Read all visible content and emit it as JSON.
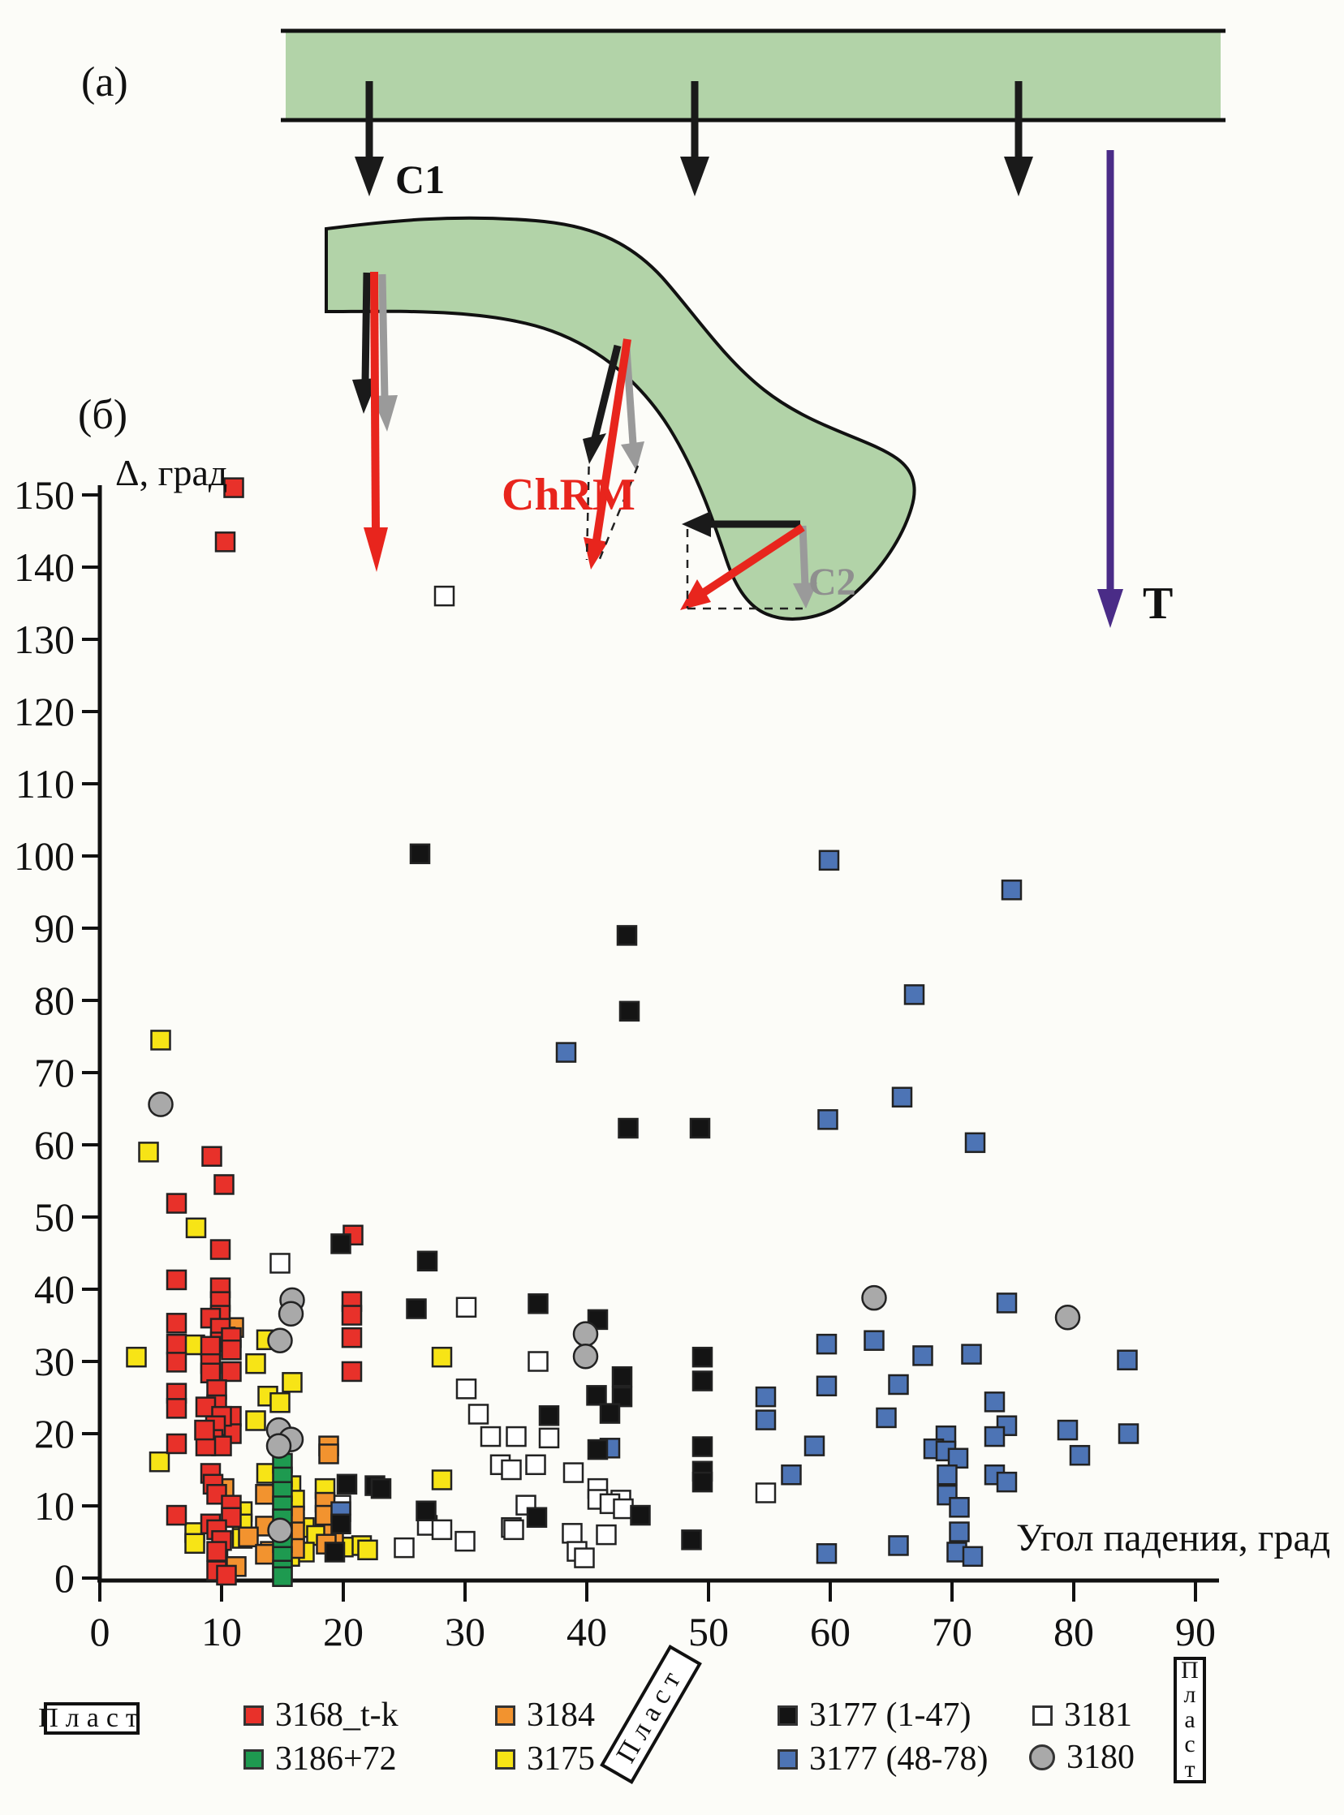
{
  "panel_a": {
    "label": "(а)",
    "c1_label": "C1",
    "t_label": "T"
  },
  "panel_b": {
    "label": "(б)",
    "chrm_label": "ChRM",
    "c2_label": "C2"
  },
  "axis": {
    "y_label": "Δ, град",
    "x_label": "Угол падения, град"
  },
  "colors": {
    "band_green": "#b2d3a8",
    "outline": "#111111",
    "black_arrow": "#1a1a1a",
    "gray_arrow": "#9a9a9a",
    "red_arrow": "#e8251d",
    "purple_arrow": "#4a2c87"
  },
  "legend": {
    "plast_label": "Пласт",
    "items": [
      {
        "label": "3168_t-k",
        "color": "#e8312a",
        "shape": "square"
      },
      {
        "label": "3186+72",
        "color": "#1e9a50",
        "shape": "square"
      },
      {
        "label": "3184",
        "color": "#f2932f",
        "shape": "square"
      },
      {
        "label": "3175",
        "color": "#f7e416",
        "shape": "square"
      },
      {
        "label": "3177 (1-47)",
        "color": "#141414",
        "shape": "square"
      },
      {
        "label": "3177 (48-78)",
        "color": "#4d74b5",
        "shape": "square"
      },
      {
        "label": "3181",
        "color": "#ffffff",
        "shape": "square"
      },
      {
        "label": "3180",
        "color": "#a9a9a9",
        "shape": "circle"
      }
    ]
  },
  "chart_data": {
    "type": "scatter",
    "title": "",
    "xlabel": "Угол падения, град",
    "ylabel": "Δ, град",
    "xlim": [
      0,
      90
    ],
    "ylim": [
      0,
      150
    ],
    "x_ticks": [
      0,
      10,
      20,
      30,
      40,
      50,
      60,
      70,
      80,
      90
    ],
    "y_ticks": [
      0,
      10,
      20,
      30,
      40,
      50,
      60,
      70,
      80,
      90,
      100,
      110,
      120,
      130,
      140,
      150
    ],
    "grid": false,
    "legend_position": "bottom",
    "series": [
      {
        "name": "3181",
        "label": "3181",
        "color": "#ffffff",
        "marker": "square",
        "points": [
          [
            28.3,
            136
          ],
          [
            14.8,
            43.6
          ],
          [
            30.1,
            37.5
          ],
          [
            36,
            30
          ],
          [
            30.1,
            26.2
          ],
          [
            31.1,
            22.7
          ],
          [
            32.1,
            19.6
          ],
          [
            34.2,
            19.6
          ],
          [
            36.9,
            19.4
          ],
          [
            32.9,
            15.7
          ],
          [
            35.8,
            15.7
          ],
          [
            33.8,
            15
          ],
          [
            38.9,
            14.6
          ],
          [
            40.9,
            12.4
          ],
          [
            54.7,
            11.8
          ],
          [
            40.9,
            10.9
          ],
          [
            42.8,
            10.8
          ],
          [
            41.9,
            10.3
          ],
          [
            35,
            10.1
          ],
          [
            19.8,
            10.1
          ],
          [
            43,
            9.6
          ],
          [
            26.9,
            7.3
          ],
          [
            33.8,
            7
          ],
          [
            34,
            6.7
          ],
          [
            28.1,
            6.7
          ],
          [
            38.8,
            6.2
          ],
          [
            41.6,
            6
          ],
          [
            30,
            5.1
          ],
          [
            25,
            4.2
          ],
          [
            39.2,
            3.7
          ],
          [
            39.8,
            2.8
          ]
        ]
      },
      {
        "name": "3175",
        "label": "3175",
        "color": "#f7e416",
        "marker": "square",
        "points": [
          [
            5,
            74.5
          ],
          [
            4,
            59
          ],
          [
            7.9,
            48.5
          ],
          [
            13.7,
            33
          ],
          [
            7.8,
            32.3
          ],
          [
            3,
            30.6
          ],
          [
            28.1,
            30.6
          ],
          [
            12.8,
            29.7
          ],
          [
            15.8,
            27.1
          ],
          [
            13.8,
            25.2
          ],
          [
            14.8,
            24.3
          ],
          [
            12.8,
            21.8
          ],
          [
            4.9,
            16.1
          ],
          [
            13.7,
            14.5
          ],
          [
            28.1,
            13.6
          ],
          [
            15.7,
            12.8
          ],
          [
            18.5,
            12.4
          ],
          [
            16,
            10.8
          ],
          [
            11.7,
            9.2
          ],
          [
            11.7,
            7.5
          ],
          [
            16.8,
            7
          ],
          [
            7.8,
            6.3
          ],
          [
            17.8,
            5.9
          ],
          [
            11.7,
            5.5
          ],
          [
            7.8,
            4.8
          ],
          [
            21.5,
            4.5
          ],
          [
            20,
            4.3
          ],
          [
            22,
            3.9
          ],
          [
            16.8,
            3.6
          ],
          [
            15.6,
            3
          ],
          [
            9.7,
            2.7
          ]
        ]
      },
      {
        "name": "3184",
        "label": "3184",
        "color": "#f2932f",
        "marker": "square",
        "points": [
          [
            11,
            34.7
          ],
          [
            10.3,
            33.4
          ],
          [
            18.8,
            18.3
          ],
          [
            18.8,
            17.2
          ],
          [
            10.2,
            12.4
          ],
          [
            13.6,
            11.6
          ],
          [
            18.5,
            10.5
          ],
          [
            18.5,
            8.7
          ],
          [
            16,
            8.6
          ],
          [
            13.6,
            7.2
          ],
          [
            16,
            6.4
          ],
          [
            19.2,
            6.1
          ],
          [
            12.2,
            5.7
          ],
          [
            18.6,
            4.7
          ],
          [
            16,
            4.1
          ],
          [
            14,
            3.7
          ],
          [
            13.6,
            3.3
          ],
          [
            11.2,
            1.6
          ]
        ]
      },
      {
        "name": "3168_t-k",
        "label": "3168_t-k",
        "color": "#e8312a",
        "marker": "square",
        "points": [
          [
            11,
            151
          ],
          [
            10.3,
            143.5
          ],
          [
            9.2,
            58.4
          ],
          [
            10.2,
            54.5
          ],
          [
            6.3,
            51.9
          ],
          [
            9.9,
            45.5
          ],
          [
            6.3,
            41.3
          ],
          [
            6.3,
            35.3
          ],
          [
            6.3,
            32.4
          ],
          [
            6.3,
            29.9
          ],
          [
            6.3,
            25.6
          ],
          [
            6.3,
            23.5
          ],
          [
            6.3,
            18.6
          ],
          [
            6.3,
            8.7
          ],
          [
            9.9,
            40.2
          ],
          [
            9.9,
            38.3
          ],
          [
            9.9,
            36.4
          ],
          [
            9.1,
            36
          ],
          [
            9.9,
            34.6
          ],
          [
            9.9,
            32.7
          ],
          [
            9.1,
            32.1
          ],
          [
            9.1,
            29.7
          ],
          [
            9.1,
            28.4
          ],
          [
            10.8,
            33.3
          ],
          [
            10.8,
            31.6
          ],
          [
            10.8,
            28.6
          ],
          [
            10.8,
            22.4
          ],
          [
            10.8,
            20
          ],
          [
            9.6,
            26.1
          ],
          [
            9.6,
            24
          ],
          [
            8.7,
            23.7
          ],
          [
            10,
            22.4
          ],
          [
            9.5,
            21.1
          ],
          [
            9.3,
            19.2
          ],
          [
            10,
            18.3
          ],
          [
            8.7,
            18.3
          ],
          [
            8.6,
            20.5
          ],
          [
            9.1,
            14.5
          ],
          [
            9.3,
            13
          ],
          [
            9.6,
            11.6
          ],
          [
            10.8,
            10.1
          ],
          [
            10.8,
            8.4
          ],
          [
            9.1,
            7.5
          ],
          [
            9.6,
            6.7
          ],
          [
            10,
            5.2
          ],
          [
            9.6,
            3.7
          ],
          [
            9.6,
            1
          ],
          [
            10.4,
            0.4
          ],
          [
            20.8,
            47.5
          ],
          [
            20.7,
            38.3
          ],
          [
            20.7,
            36.4
          ],
          [
            20.7,
            33.3
          ],
          [
            20.7,
            28.6
          ]
        ]
      },
      {
        "name": "3186+72",
        "label": "3186+72",
        "color": "#1e9a50",
        "marker": "square",
        "points": [
          [
            15,
            15.9
          ],
          [
            15,
            14
          ],
          [
            15,
            12
          ],
          [
            15,
            10
          ],
          [
            15,
            8.2
          ],
          [
            15,
            6.3
          ],
          [
            15,
            4.9
          ],
          [
            15,
            3
          ],
          [
            15,
            1.1
          ],
          [
            15,
            0.2
          ]
        ]
      },
      {
        "name": "3177 (48-78)",
        "label": "3177 (48-78)",
        "color": "#4d74b5",
        "marker": "square",
        "points": [
          [
            59.9,
            99.4
          ],
          [
            74.9,
            95.3
          ],
          [
            66.9,
            80.8
          ],
          [
            38.3,
            72.8
          ],
          [
            65.9,
            66.6
          ],
          [
            59.8,
            63.5
          ],
          [
            71.9,
            60.3
          ],
          [
            74.5,
            38.1
          ],
          [
            63.6,
            32.9
          ],
          [
            59.7,
            32.4
          ],
          [
            71.6,
            31
          ],
          [
            67.6,
            30.8
          ],
          [
            84.4,
            30.2
          ],
          [
            65.6,
            26.8
          ],
          [
            59.7,
            26.6
          ],
          [
            54.7,
            25.1
          ],
          [
            73.5,
            24.4
          ],
          [
            64.6,
            22.2
          ],
          [
            54.7,
            21.9
          ],
          [
            74.5,
            21.1
          ],
          [
            79.5,
            20.5
          ],
          [
            84.5,
            20
          ],
          [
            69.5,
            19.7
          ],
          [
            73.5,
            19.6
          ],
          [
            58.7,
            18.3
          ],
          [
            41.9,
            18
          ],
          [
            68.5,
            17.9
          ],
          [
            69.5,
            17.6
          ],
          [
            80.5,
            17
          ],
          [
            70.5,
            16.6
          ],
          [
            56.8,
            14.3
          ],
          [
            69.6,
            14.3
          ],
          [
            73.5,
            14.3
          ],
          [
            74.5,
            13.3
          ],
          [
            69.6,
            11.5
          ],
          [
            19.8,
            9.2
          ],
          [
            70.6,
            9.8
          ],
          [
            70.6,
            6.4
          ],
          [
            65.6,
            4.5
          ],
          [
            70.4,
            3.6
          ],
          [
            59.7,
            3.4
          ],
          [
            71.7,
            3
          ]
        ]
      },
      {
        "name": "3177 (1-47)",
        "label": "3177 (1-47)",
        "color": "#141414",
        "marker": "square",
        "points": [
          [
            26.3,
            100.3
          ],
          [
            43.3,
            89
          ],
          [
            43.5,
            78.5
          ],
          [
            43.4,
            62.3
          ],
          [
            49.3,
            62.3
          ],
          [
            19.8,
            46.3
          ],
          [
            26.9,
            43.9
          ],
          [
            36,
            38
          ],
          [
            26,
            37.3
          ],
          [
            40.9,
            35.8
          ],
          [
            49.5,
            30.6
          ],
          [
            42.9,
            27.9
          ],
          [
            49.5,
            27.3
          ],
          [
            40.8,
            25.3
          ],
          [
            42.9,
            25.1
          ],
          [
            41.9,
            22.8
          ],
          [
            36.9,
            22.5
          ],
          [
            49.5,
            18.2
          ],
          [
            40.9,
            17.8
          ],
          [
            49.5,
            14.8
          ],
          [
            49.5,
            13.3
          ],
          [
            20.3,
            13
          ],
          [
            22.6,
            12.8
          ],
          [
            23.1,
            12.4
          ],
          [
            26.8,
            9.3
          ],
          [
            44.4,
            8.7
          ],
          [
            35.9,
            8.4
          ],
          [
            19.8,
            7.5
          ],
          [
            48.6,
            5.3
          ],
          [
            19.3,
            3.6
          ]
        ]
      },
      {
        "name": "3180",
        "label": "3180",
        "color": "#a9a9a9",
        "marker": "circle",
        "points": [
          [
            5,
            65.6
          ],
          [
            63.6,
            38.8
          ],
          [
            15.8,
            38.5
          ],
          [
            15.7,
            36.6
          ],
          [
            79.5,
            36.1
          ],
          [
            39.9,
            33.8
          ],
          [
            14.8,
            32.9
          ],
          [
            39.9,
            30.7
          ],
          [
            14.7,
            20.5
          ],
          [
            15.7,
            19.2
          ],
          [
            14.7,
            18.3
          ],
          [
            14.8,
            6.6
          ]
        ]
      }
    ]
  }
}
